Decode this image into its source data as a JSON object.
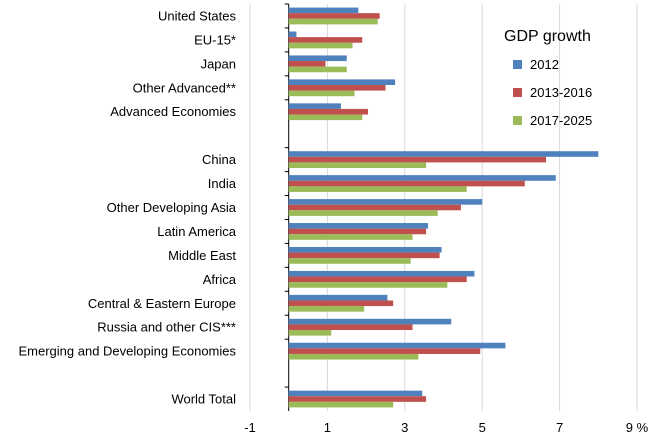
{
  "chart_data": {
    "type": "bar",
    "orientation": "horizontal",
    "title": "",
    "xlabel": "",
    "ylabel": "",
    "xlim": [
      -1,
      9
    ],
    "x_ticks": [
      {
        "value": -1,
        "label": "-1"
      },
      {
        "value": 1,
        "label": "1"
      },
      {
        "value": 3,
        "label": "3"
      },
      {
        "value": 5,
        "label": "5"
      },
      {
        "value": 7,
        "label": "7"
      },
      {
        "value": 9,
        "label": "9 %"
      }
    ],
    "grid": "vertical",
    "legend": {
      "title": "GDP growth",
      "position": "top-right"
    },
    "series": [
      {
        "name": "2012",
        "color": "#4F81BD"
      },
      {
        "name": "2013-2016",
        "color": "#C0504D"
      },
      {
        "name": "2017-2025",
        "color": "#9BBB59"
      }
    ],
    "categories": [
      {
        "label": "United States",
        "values": [
          1.8,
          2.35,
          2.3
        ]
      },
      {
        "label": "EU-15*",
        "values": [
          0.2,
          1.9,
          1.65
        ]
      },
      {
        "label": "Japan",
        "values": [
          1.5,
          0.95,
          1.5
        ]
      },
      {
        "label": "Other Advanced**",
        "values": [
          2.75,
          2.5,
          1.7
        ]
      },
      {
        "label": "Advanced Economies",
        "values": [
          1.35,
          2.05,
          1.9
        ]
      },
      {
        "label": "China",
        "values": [
          8.0,
          6.65,
          3.55
        ]
      },
      {
        "label": "India",
        "values": [
          6.9,
          6.1,
          4.6
        ]
      },
      {
        "label": "Other Developing Asia",
        "values": [
          5.0,
          4.45,
          3.85
        ]
      },
      {
        "label": "Latin America",
        "values": [
          3.6,
          3.55,
          3.2
        ]
      },
      {
        "label": "Middle East",
        "values": [
          3.95,
          3.9,
          3.15
        ]
      },
      {
        "label": "Africa",
        "values": [
          4.8,
          4.6,
          4.1
        ]
      },
      {
        "label": "Central & Eastern Europe",
        "values": [
          2.55,
          2.7,
          1.95
        ]
      },
      {
        "label": "Russia and other CIS***",
        "values": [
          4.2,
          3.2,
          1.1
        ]
      },
      {
        "label": "Emerging and Developing Economies",
        "values": [
          5.6,
          4.95,
          3.35
        ]
      },
      {
        "label": "World Total",
        "values": [
          3.45,
          3.55,
          2.7
        ]
      }
    ]
  }
}
